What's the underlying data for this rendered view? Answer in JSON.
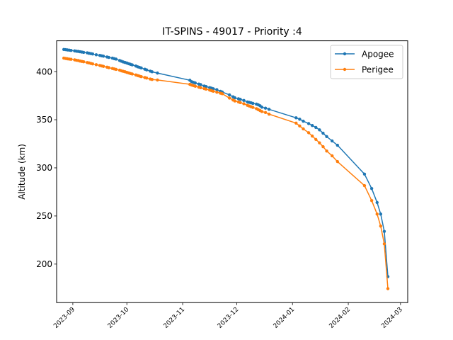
{
  "chart_data": {
    "type": "line",
    "title": "IT-SPINS - 49017 - Priority :4",
    "xlabel": "",
    "ylabel": "Altitude (km)",
    "x_ticks": [
      "2023-09",
      "2023-10",
      "2023-11",
      "2023-12",
      "2024-01",
      "2024-02",
      "2024-03"
    ],
    "x_range": [
      "2023-08-23",
      "2024-03-05"
    ],
    "y_ticks": [
      200,
      250,
      300,
      350,
      400
    ],
    "ylim": [
      160,
      432
    ],
    "grid": false,
    "legend_position": "top-right",
    "series": [
      {
        "name": "Apogee",
        "color": "#1f77b4",
        "points": [
          [
            "2023-08-27",
            423
          ],
          [
            "2023-08-28",
            422.8
          ],
          [
            "2023-08-29",
            422.5
          ],
          [
            "2023-08-30",
            422.3
          ],
          [
            "2023-08-31",
            422
          ],
          [
            "2023-09-02",
            421.5
          ],
          [
            "2023-09-03",
            421.2
          ],
          [
            "2023-09-04",
            421
          ],
          [
            "2023-09-05",
            420.6
          ],
          [
            "2023-09-06",
            420.3
          ],
          [
            "2023-09-07",
            420
          ],
          [
            "2023-09-09",
            419.5
          ],
          [
            "2023-09-10",
            419
          ],
          [
            "2023-09-11",
            418.7
          ],
          [
            "2023-09-12",
            418.3
          ],
          [
            "2023-09-14",
            417.5
          ],
          [
            "2023-09-16",
            416.8
          ],
          [
            "2023-09-17",
            416.4
          ],
          [
            "2023-09-18",
            416
          ],
          [
            "2023-09-20",
            415.2
          ],
          [
            "2023-09-21",
            414.7
          ],
          [
            "2023-09-23",
            414
          ],
          [
            "2023-09-24",
            413.4
          ],
          [
            "2023-09-25",
            413
          ],
          [
            "2023-09-27",
            411.5
          ],
          [
            "2023-09-28",
            410.8
          ],
          [
            "2023-09-29",
            410
          ],
          [
            "2023-09-30",
            409.5
          ],
          [
            "2023-10-01",
            408.9
          ],
          [
            "2023-10-02",
            408.2
          ],
          [
            "2023-10-03",
            407.6
          ],
          [
            "2023-10-04",
            407
          ],
          [
            "2023-10-06",
            405.8
          ],
          [
            "2023-10-07",
            405
          ],
          [
            "2023-10-08",
            404.4
          ],
          [
            "2023-10-09",
            403.8
          ],
          [
            "2023-10-11",
            402.5
          ],
          [
            "2023-10-12",
            401.8
          ],
          [
            "2023-10-14",
            400.5
          ],
          [
            "2023-10-15",
            399.8
          ],
          [
            "2023-10-18",
            398.5
          ],
          [
            "2023-11-05",
            391
          ],
          [
            "2023-11-06",
            389.5
          ],
          [
            "2023-11-07",
            388.8
          ],
          [
            "2023-11-08",
            388.2
          ],
          [
            "2023-11-10",
            387
          ],
          [
            "2023-11-11",
            386.5
          ],
          [
            "2023-11-13",
            385
          ],
          [
            "2023-11-14",
            384.5
          ],
          [
            "2023-11-16",
            383.4
          ],
          [
            "2023-11-17",
            382.8
          ],
          [
            "2023-11-18",
            382.2
          ],
          [
            "2023-11-20",
            381.2
          ],
          [
            "2023-11-22",
            379.5
          ],
          [
            "2023-11-23",
            378.8
          ],
          [
            "2023-11-27",
            375.8
          ],
          [
            "2023-11-29",
            373.8
          ],
          [
            "2023-11-30",
            372.8
          ],
          [
            "2023-12-02",
            371.8
          ],
          [
            "2023-12-03",
            371.2
          ],
          [
            "2023-12-05",
            370
          ],
          [
            "2023-12-07",
            368.5
          ],
          [
            "2023-12-08",
            368
          ],
          [
            "2023-12-09",
            367.5
          ],
          [
            "2023-12-10",
            367
          ],
          [
            "2023-12-12",
            366.2
          ],
          [
            "2023-12-13",
            365.5
          ],
          [
            "2023-12-14",
            364.5
          ],
          [
            "2023-12-15",
            363
          ],
          [
            "2023-12-17",
            362
          ],
          [
            "2023-12-19",
            360.8
          ],
          [
            "2024-01-03",
            352
          ],
          [
            "2024-01-05",
            350.5
          ],
          [
            "2024-01-07",
            348.5
          ],
          [
            "2024-01-10",
            346
          ],
          [
            "2024-01-12",
            344
          ],
          [
            "2024-01-14",
            342
          ],
          [
            "2024-01-16",
            339.5
          ],
          [
            "2024-01-18",
            336
          ],
          [
            "2024-01-20",
            332.5
          ],
          [
            "2024-01-23",
            328
          ],
          [
            "2024-01-26",
            323.5
          ],
          [
            "2024-02-10",
            293.5
          ],
          [
            "2024-02-14",
            278.5
          ],
          [
            "2024-02-17",
            264
          ],
          [
            "2024-02-19",
            252
          ],
          [
            "2024-02-21",
            234
          ],
          [
            "2024-02-23",
            187
          ]
        ]
      },
      {
        "name": "Perigee",
        "color": "#ff7f0e",
        "points": [
          [
            "2023-08-27",
            414
          ],
          [
            "2023-08-28",
            413.6
          ],
          [
            "2023-08-29",
            413.3
          ],
          [
            "2023-08-30",
            413
          ],
          [
            "2023-08-31",
            412.8
          ],
          [
            "2023-09-02",
            412.2
          ],
          [
            "2023-09-03",
            411.8
          ],
          [
            "2023-09-04",
            411.5
          ],
          [
            "2023-09-05",
            411
          ],
          [
            "2023-09-06",
            410.6
          ],
          [
            "2023-09-07",
            410.2
          ],
          [
            "2023-09-09",
            409.4
          ],
          [
            "2023-09-10",
            409
          ],
          [
            "2023-09-11",
            408.5
          ],
          [
            "2023-09-12",
            408
          ],
          [
            "2023-09-14",
            407.2
          ],
          [
            "2023-09-16",
            406.4
          ],
          [
            "2023-09-17",
            405.9
          ],
          [
            "2023-09-18",
            405.4
          ],
          [
            "2023-09-20",
            404.6
          ],
          [
            "2023-09-21",
            404.1
          ],
          [
            "2023-09-23",
            403.2
          ],
          [
            "2023-09-24",
            402.8
          ],
          [
            "2023-09-25",
            402.3
          ],
          [
            "2023-09-27",
            401.5
          ],
          [
            "2023-09-28",
            400.8
          ],
          [
            "2023-09-29",
            400.3
          ],
          [
            "2023-09-30",
            399.8
          ],
          [
            "2023-10-01",
            399.2
          ],
          [
            "2023-10-02",
            398.6
          ],
          [
            "2023-10-03",
            398
          ],
          [
            "2023-10-04",
            397.5
          ],
          [
            "2023-10-06",
            396.5
          ],
          [
            "2023-10-07",
            395.9
          ],
          [
            "2023-10-08",
            395.3
          ],
          [
            "2023-10-09",
            394.8
          ],
          [
            "2023-10-11",
            393.8
          ],
          [
            "2023-10-12",
            393.3
          ],
          [
            "2023-10-14",
            392.3
          ],
          [
            "2023-10-15",
            391.8
          ],
          [
            "2023-10-18",
            391.3
          ],
          [
            "2023-11-05",
            386.8
          ],
          [
            "2023-11-06",
            386
          ],
          [
            "2023-11-07",
            385.4
          ],
          [
            "2023-11-08",
            384.8
          ],
          [
            "2023-11-10",
            383.8
          ],
          [
            "2023-11-11",
            383.3
          ],
          [
            "2023-11-13",
            382.3
          ],
          [
            "2023-11-14",
            381.8
          ],
          [
            "2023-11-16",
            380.8
          ],
          [
            "2023-11-17",
            380.2
          ],
          [
            "2023-11-18",
            379.6
          ],
          [
            "2023-11-20",
            378.6
          ],
          [
            "2023-11-22",
            377.6
          ],
          [
            "2023-11-23",
            377
          ],
          [
            "2023-11-27",
            372.5
          ],
          [
            "2023-11-29",
            370.5
          ],
          [
            "2023-11-30",
            369.5
          ],
          [
            "2023-12-02",
            368.5
          ],
          [
            "2023-12-03",
            367.8
          ],
          [
            "2023-12-05",
            366.6
          ],
          [
            "2023-12-07",
            365
          ],
          [
            "2023-12-08",
            364.2
          ],
          [
            "2023-12-09",
            363.5
          ],
          [
            "2023-12-10",
            362.8
          ],
          [
            "2023-12-12",
            361.5
          ],
          [
            "2023-12-13",
            360.5
          ],
          [
            "2023-12-14",
            359.5
          ],
          [
            "2023-12-15",
            358.5
          ],
          [
            "2023-12-17",
            357.5
          ],
          [
            "2023-12-19",
            355.8
          ],
          [
            "2024-01-03",
            346.5
          ],
          [
            "2024-01-05",
            343.5
          ],
          [
            "2024-01-07",
            340.5
          ],
          [
            "2024-01-10",
            336.5
          ],
          [
            "2024-01-12",
            333
          ],
          [
            "2024-01-14",
            329.5
          ],
          [
            "2024-01-16",
            326
          ],
          [
            "2024-01-18",
            322
          ],
          [
            "2024-01-20",
            317.5
          ],
          [
            "2024-01-23",
            312.5
          ],
          [
            "2024-01-26",
            306.5
          ],
          [
            "2024-02-10",
            281.5
          ],
          [
            "2024-02-14",
            266
          ],
          [
            "2024-02-17",
            252
          ],
          [
            "2024-02-19",
            239.5
          ],
          [
            "2024-02-21",
            221
          ],
          [
            "2024-02-23",
            174.5
          ]
        ]
      }
    ]
  }
}
